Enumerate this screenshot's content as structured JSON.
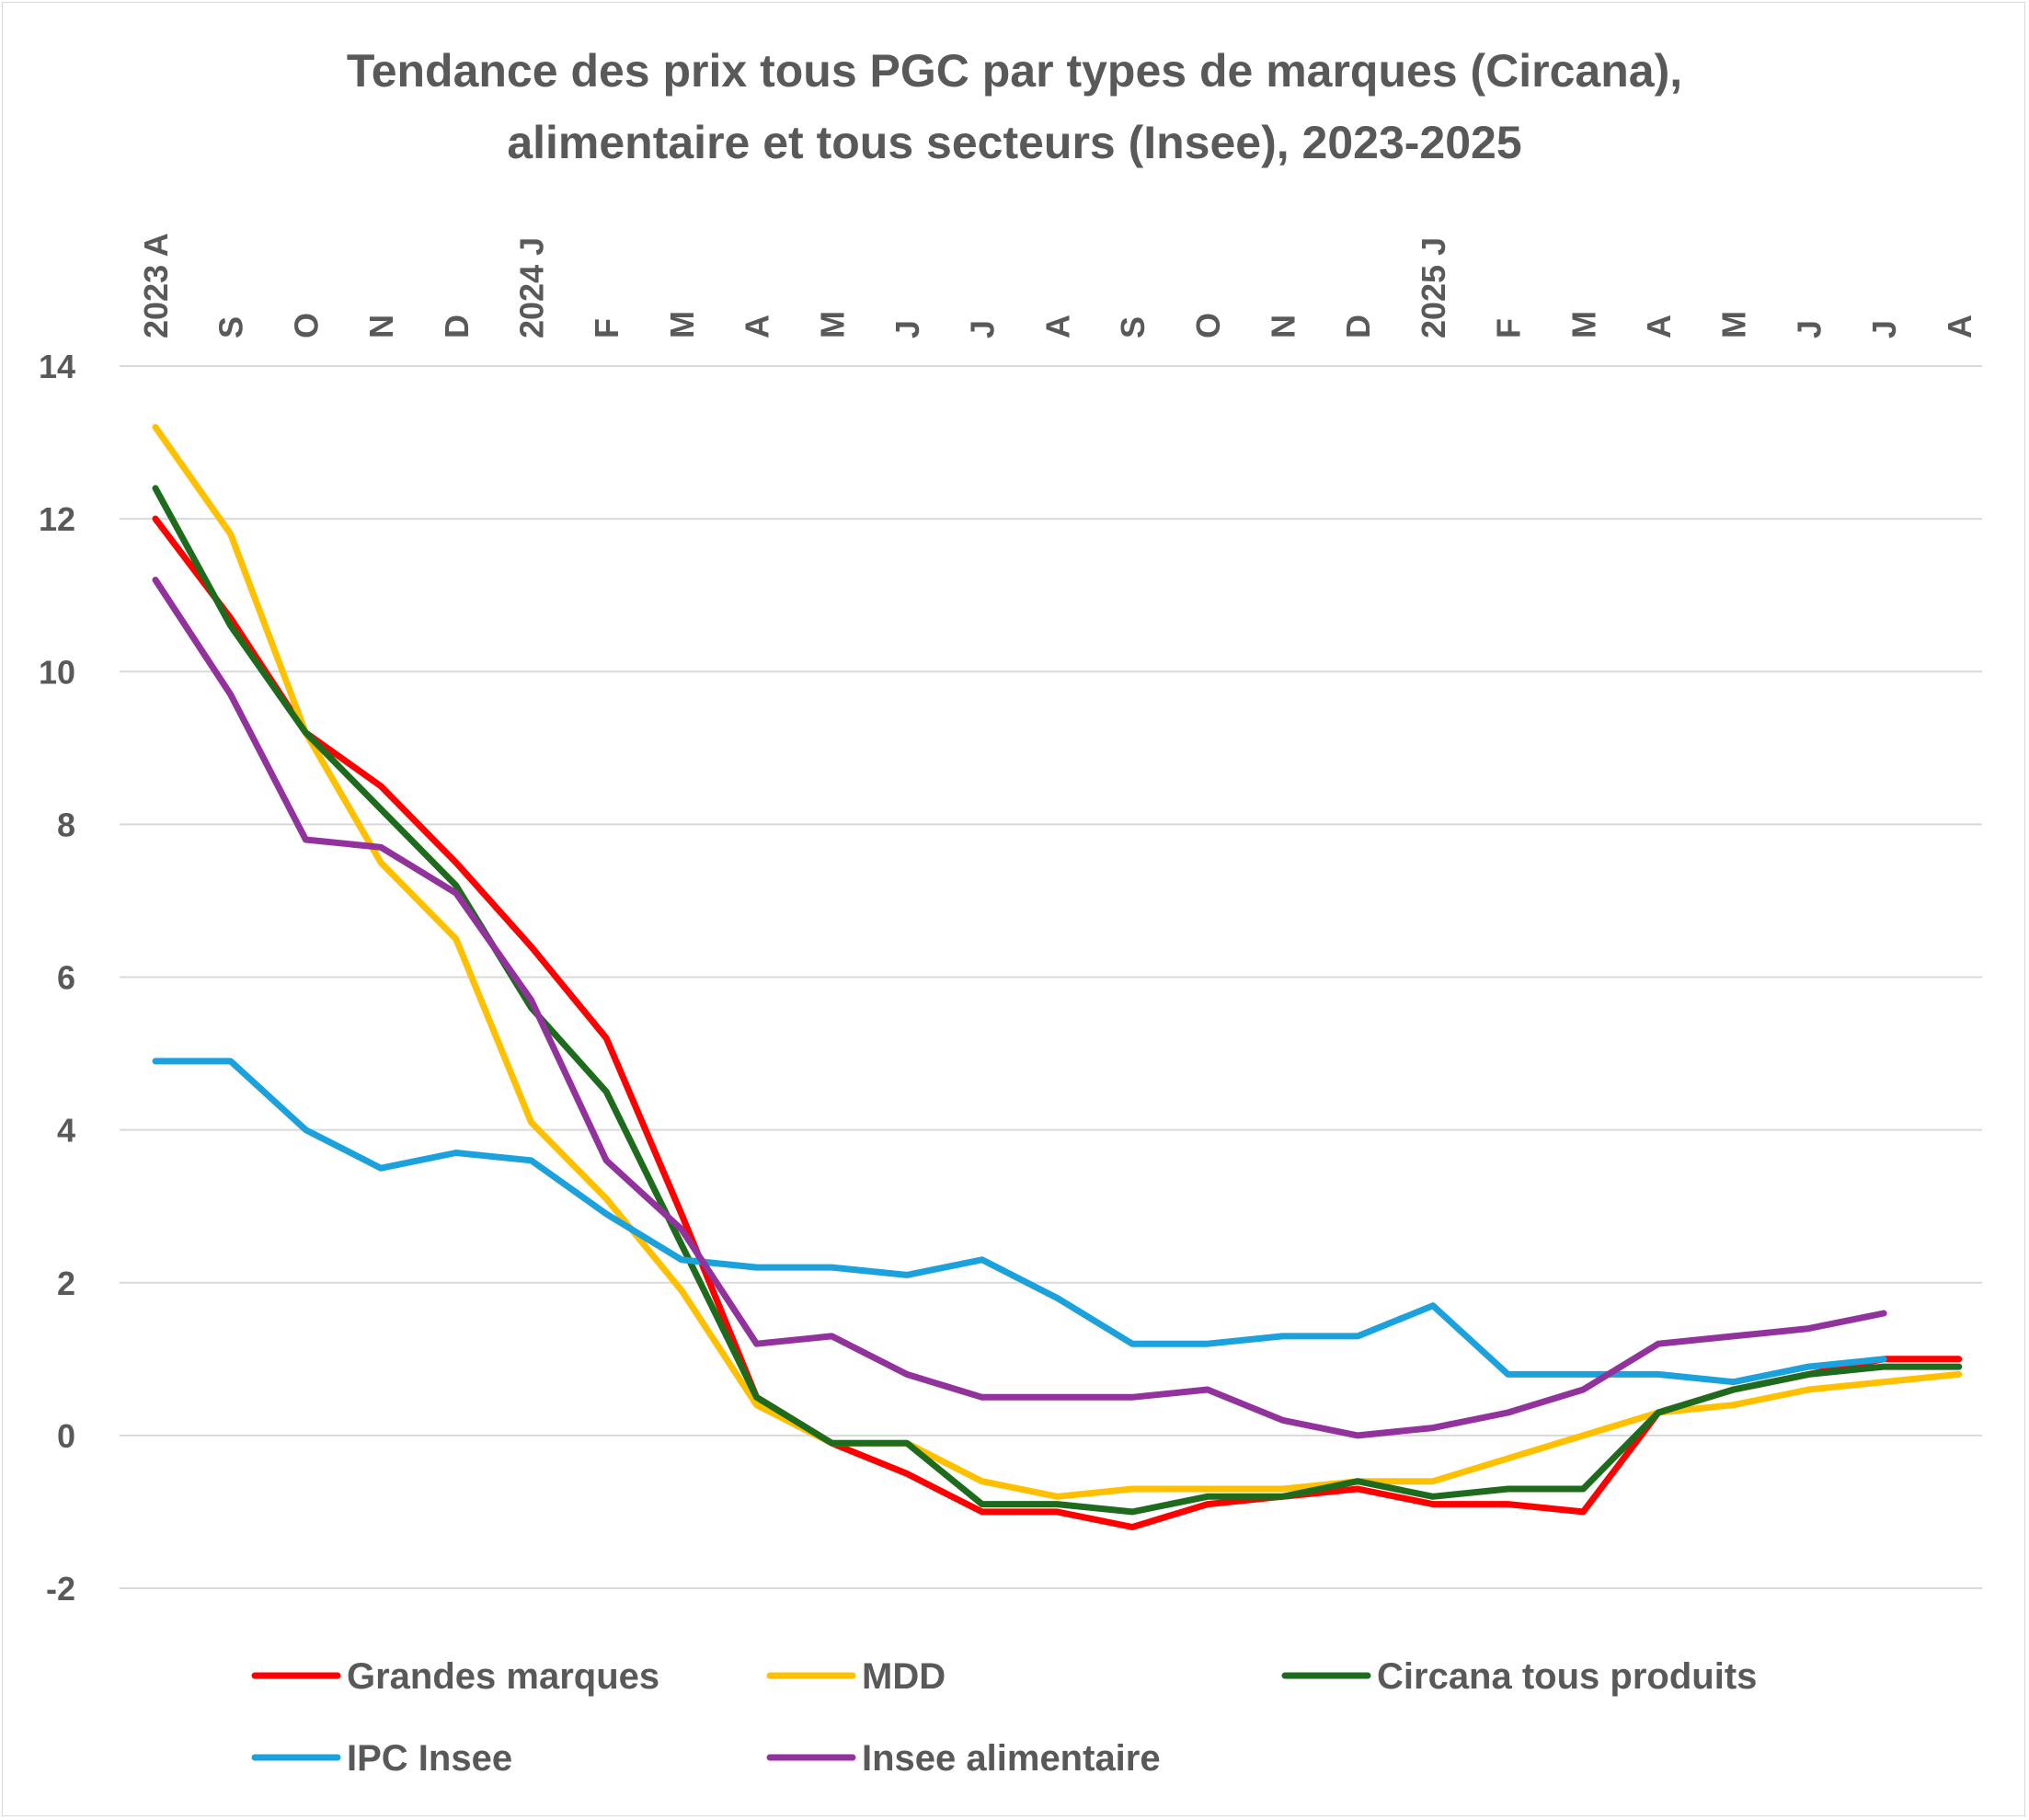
{
  "chart_data": {
    "type": "line",
    "title_lines": [
      "Tendance des prix tous PGC par types de marques (Circana),",
      "alimentaire et tous secteurs (Insee), 2023-2025"
    ],
    "categories": [
      "2023 A",
      "S",
      "O",
      "N",
      "D",
      "2024 J",
      "F",
      "M",
      "A",
      "M",
      "J",
      "J",
      "A",
      "S",
      "O",
      "N",
      "D",
      "2025 J",
      "F",
      "M",
      "A",
      "M",
      "J",
      "J",
      "A"
    ],
    "y_ticks": [
      14,
      12,
      10,
      8,
      6,
      4,
      2,
      0,
      -2
    ],
    "ylim": [
      -2,
      14
    ],
    "grid": true,
    "legend_position": "bottom",
    "series": [
      {
        "name": "Grandes marques",
        "color": "#ff0000",
        "values": [
          12.0,
          10.7,
          9.2,
          8.5,
          7.5,
          6.4,
          5.2,
          2.9,
          0.5,
          -0.1,
          -0.5,
          -1.0,
          -1.0,
          -1.2,
          -0.9,
          -0.8,
          -0.7,
          -0.9,
          -0.9,
          -1.0,
          0.3,
          0.6,
          0.8,
          1.0,
          1.0
        ]
      },
      {
        "name": "MDD",
        "color": "#ffc000",
        "values": [
          13.2,
          11.8,
          9.2,
          7.5,
          6.5,
          4.1,
          3.1,
          1.9,
          0.4,
          -0.1,
          -0.1,
          -0.6,
          -0.8,
          -0.7,
          -0.7,
          -0.7,
          -0.6,
          -0.6,
          -0.3,
          0.0,
          0.3,
          0.4,
          0.6,
          0.7,
          0.8
        ]
      },
      {
        "name": "Circana tous produits",
        "color": "#1e6b1e",
        "values": [
          12.4,
          10.6,
          9.2,
          8.2,
          7.2,
          5.6,
          4.5,
          2.5,
          0.5,
          -0.1,
          -0.1,
          -0.9,
          -0.9,
          -1.0,
          -0.8,
          -0.8,
          -0.6,
          -0.8,
          -0.7,
          -0.7,
          0.3,
          0.6,
          0.8,
          0.9,
          0.9
        ]
      },
      {
        "name": "IPC Insee",
        "color": "#1ba1dc",
        "values": [
          4.9,
          4.9,
          4.0,
          3.5,
          3.7,
          3.6,
          2.9,
          2.3,
          2.2,
          2.2,
          2.1,
          2.3,
          1.8,
          1.2,
          1.2,
          1.3,
          1.3,
          1.7,
          0.8,
          0.8,
          0.8,
          0.7,
          0.9,
          1.0,
          null
        ]
      },
      {
        "name": "Insee alimentaire",
        "color": "#92329c",
        "values": [
          11.2,
          9.7,
          7.8,
          7.7,
          7.1,
          5.7,
          3.6,
          2.7,
          1.2,
          1.3,
          0.8,
          0.5,
          0.5,
          0.5,
          0.6,
          0.2,
          0.0,
          0.1,
          0.3,
          0.6,
          1.2,
          1.3,
          1.4,
          1.6,
          null
        ]
      }
    ]
  }
}
